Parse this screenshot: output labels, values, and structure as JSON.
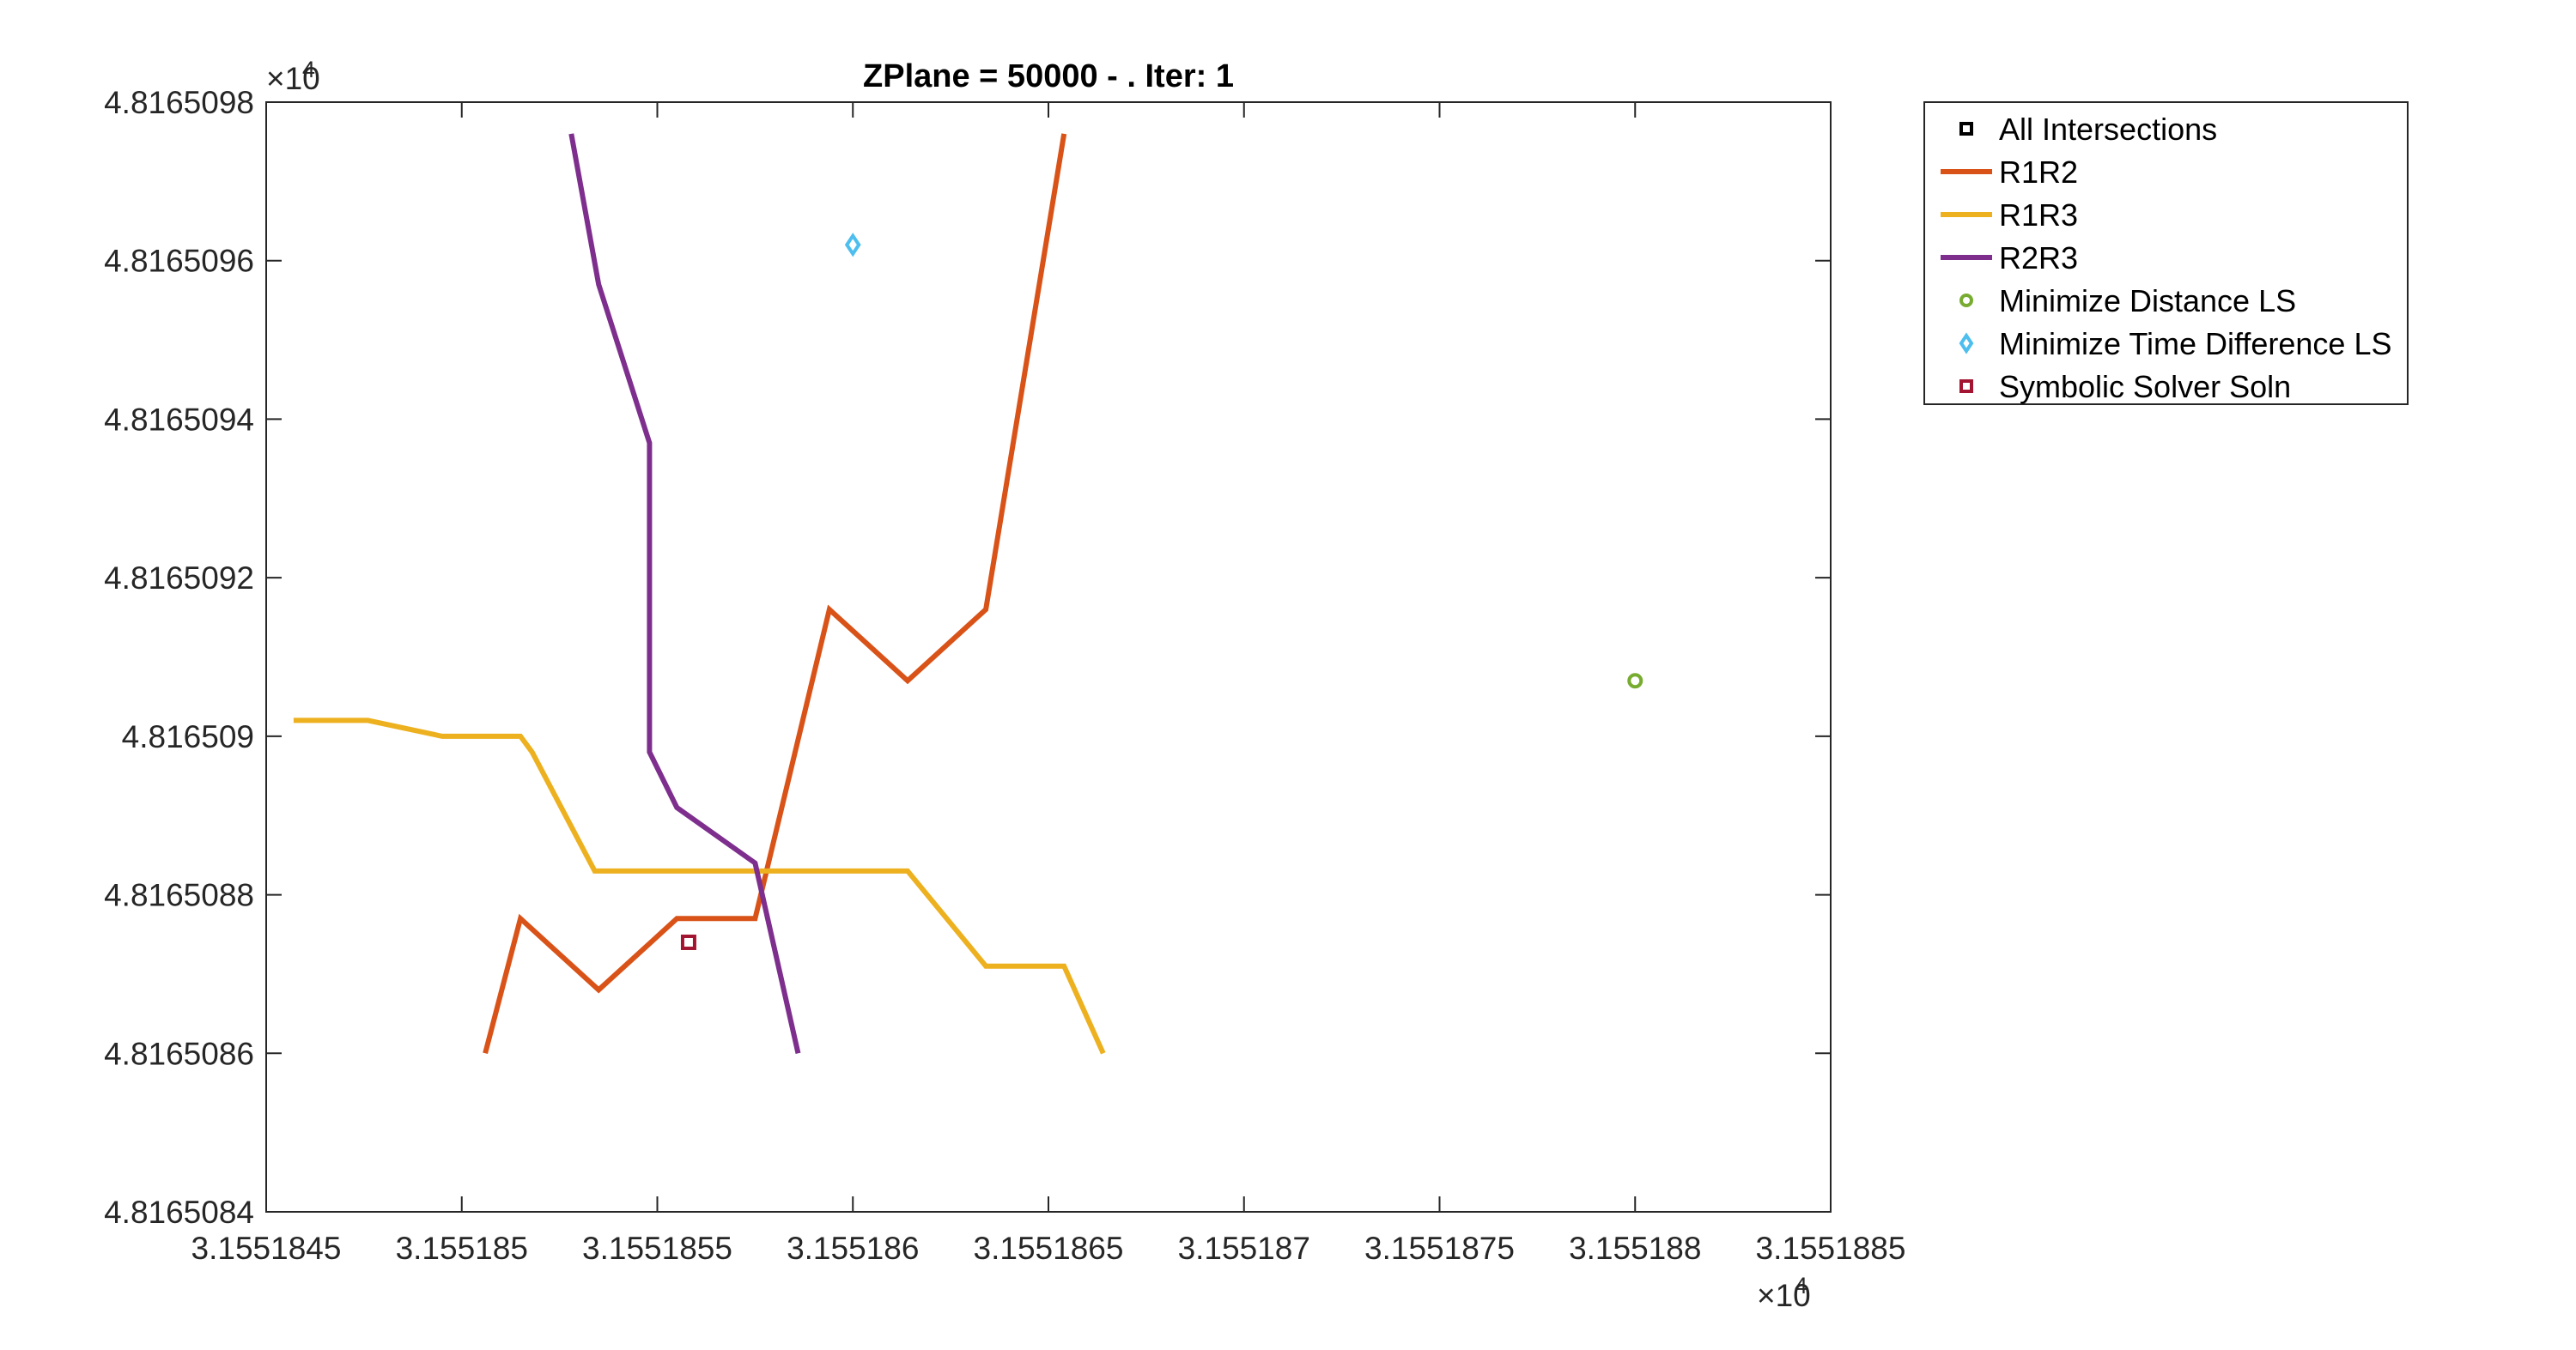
{
  "chart_data": {
    "type": "line",
    "title": "ZPlane = 50000 - . Iter: 1",
    "xlabel": "",
    "ylabel": "",
    "x_scale_note": "×10",
    "x_scale_exp": "4",
    "y_scale_note": "×10",
    "y_scale_exp": "4",
    "xlim": [
      3.1551845,
      3.1551885
    ],
    "ylim": [
      4.8165084,
      4.8165098
    ],
    "xticks": [
      3.1551845,
      3.155185,
      3.1551855,
      3.155186,
      3.1551865,
      3.155187,
      3.1551875,
      3.155188,
      3.1551885
    ],
    "xtick_labels": [
      "3.1551845",
      "3.155185",
      "3.1551855",
      "3.155186",
      "3.1551865",
      "3.155187",
      "3.1551875",
      "3.155188",
      "3.1551885"
    ],
    "yticks": [
      4.8165084,
      4.8165086,
      4.8165088,
      4.816509,
      4.8165092,
      4.8165094,
      4.8165096,
      4.8165098
    ],
    "ytick_labels": [
      "4.8165084",
      "4.8165086",
      "4.8165088",
      "4.816509",
      "4.8165092",
      "4.8165094",
      "4.8165096",
      "4.8165098"
    ],
    "grid": false,
    "legend_position": "outside-top-right",
    "series": [
      {
        "name": "All Intersections",
        "kind": "marker",
        "marker": "square",
        "color": "#000000",
        "points": []
      },
      {
        "name": "R1R2",
        "kind": "line",
        "color": "#D95319",
        "points": [
          [
            3.15518506,
            4.8165086
          ],
          [
            3.15518515,
            4.81650877
          ],
          [
            3.15518535,
            4.81650868
          ],
          [
            3.15518555,
            4.81650877
          ],
          [
            3.15518575,
            4.81650877
          ],
          [
            3.15518594,
            4.81650916
          ],
          [
            3.15518614,
            4.81650907
          ],
          [
            3.15518634,
            4.81650916
          ],
          [
            3.15518654,
            4.81650976
          ]
        ]
      },
      {
        "name": "R1R3",
        "kind": "line",
        "color": "#EDB120",
        "points": [
          [
            3.15518457,
            4.81650902
          ],
          [
            3.15518476,
            4.81650902
          ],
          [
            3.15518495,
            4.816509
          ],
          [
            3.15518515,
            4.816509
          ],
          [
            3.15518518,
            4.81650898
          ],
          [
            3.15518534,
            4.81650883
          ],
          [
            3.15518554,
            4.81650883
          ],
          [
            3.15518574,
            4.81650883
          ],
          [
            3.15518594,
            4.81650883
          ],
          [
            3.15518614,
            4.81650883
          ],
          [
            3.15518634,
            4.81650871
          ],
          [
            3.15518654,
            4.81650871
          ],
          [
            3.15518664,
            4.8165086
          ]
        ]
      },
      {
        "name": "R2R3",
        "kind": "line",
        "color": "#7E2F8E",
        "points": [
          [
            3.15518528,
            4.81650976
          ],
          [
            3.15518535,
            4.81650957
          ],
          [
            3.15518548,
            4.81650937
          ],
          [
            3.15518548,
            4.81650898
          ],
          [
            3.15518555,
            4.81650891
          ],
          [
            3.15518575,
            4.81650884
          ],
          [
            3.15518586,
            4.8165086
          ]
        ]
      },
      {
        "name": "Minimize Distance LS",
        "kind": "marker",
        "marker": "circle",
        "color": "#77AC30",
        "points": [
          [
            3.155188,
            4.81650907
          ]
        ]
      },
      {
        "name": "Minimize Time Difference LS",
        "kind": "marker",
        "marker": "diamond",
        "color": "#4DBEEE",
        "points": [
          [
            3.155186,
            4.81650962
          ]
        ]
      },
      {
        "name": "Symbolic Solver Soln",
        "kind": "marker",
        "marker": "square",
        "color": "#A2142F",
        "points": [
          [
            3.15518558,
            4.81650874
          ]
        ]
      }
    ]
  }
}
